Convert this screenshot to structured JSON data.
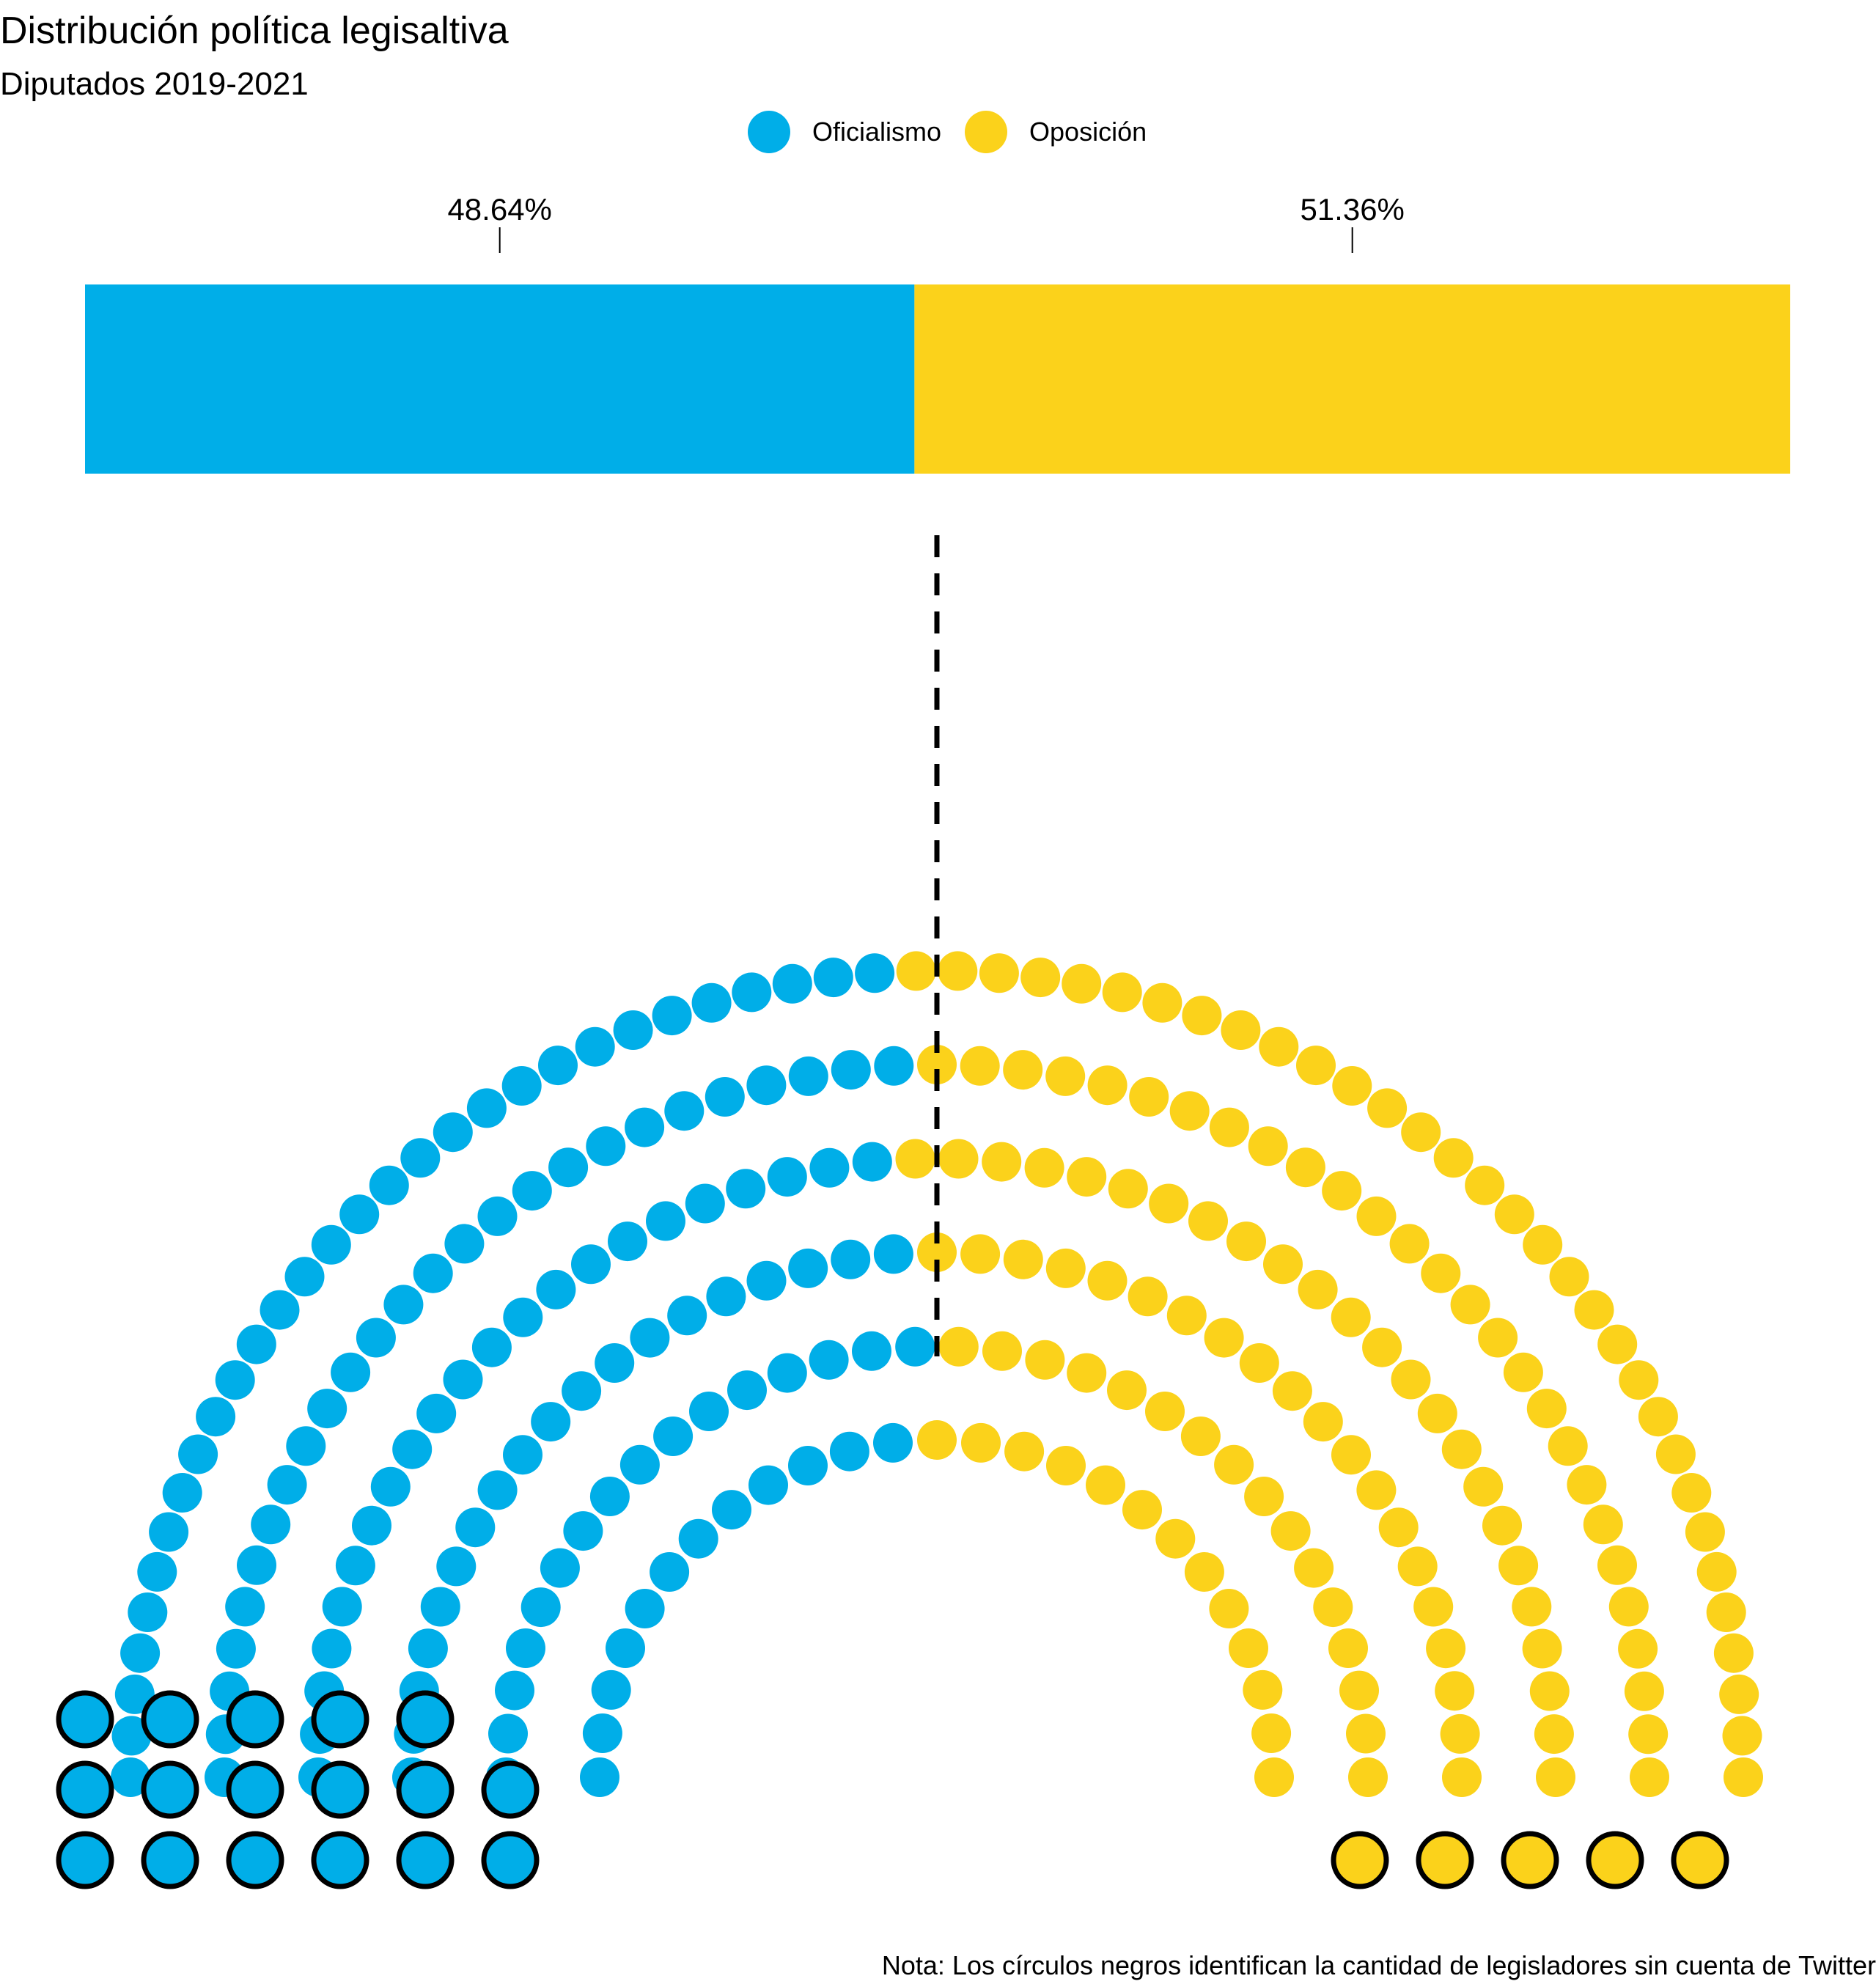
{
  "header": {
    "title": "Distribución política legisaltiva",
    "subtitle": "Diputados 2019-2021"
  },
  "legend": {
    "items": [
      {
        "label": "Oficialismo",
        "color": "#00aee8"
      },
      {
        "label": "Oposición",
        "color": "#fbd21b"
      }
    ]
  },
  "footer": {
    "note": "Nota: Los círculos negros identifican la cantidad de legisladores sin cuenta de Twitter"
  },
  "chart_data": [
    {
      "type": "bar",
      "orientation": "horizontal-stacked",
      "series": [
        {
          "name": "Oficialismo",
          "value": 48.64,
          "label": "48.64%",
          "color": "#00aee8"
        },
        {
          "name": "Oposición",
          "value": 51.36,
          "label": "51.36%",
          "color": "#fbd21b"
        }
      ],
      "xlim": [
        0,
        100
      ]
    },
    {
      "type": "scatter",
      "subtype": "parliament",
      "total_seats": 257,
      "rows": 6,
      "groups": [
        {
          "name": "Oficialismo",
          "seats": 125,
          "without_twitter": 17,
          "color": "#00aee8"
        },
        {
          "name": "Oposición",
          "seats": 132,
          "without_twitter": 5,
          "color": "#fbd21b"
        }
      ],
      "divider": "dashed-vertical-center"
    }
  ]
}
